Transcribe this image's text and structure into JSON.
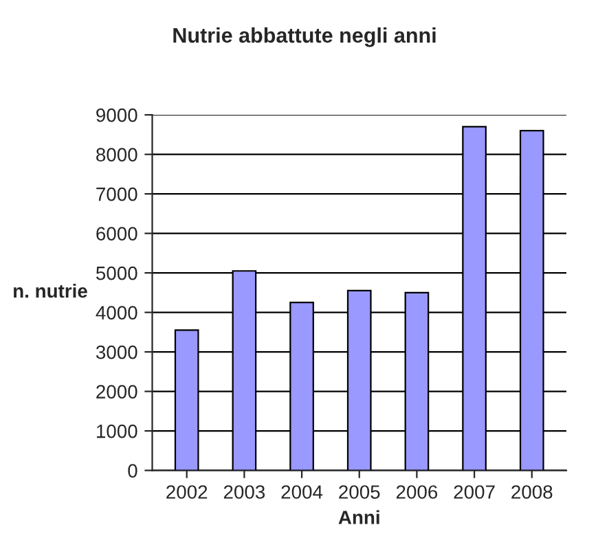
{
  "chart_data": {
    "type": "bar",
    "title": "Nutrie abbattute negli anni",
    "xlabel": "Anni",
    "ylabel": "n. nutrie",
    "categories": [
      "2002",
      "2003",
      "2004",
      "2005",
      "2006",
      "2007",
      "2008"
    ],
    "values": [
      3550,
      5050,
      4250,
      4550,
      4500,
      8700,
      8600
    ],
    "color": "#9999ff",
    "ylim": [
      0,
      9000
    ],
    "yticks": [
      0,
      1000,
      2000,
      3000,
      4000,
      5000,
      6000,
      7000,
      8000,
      9000
    ],
    "grid": "y"
  }
}
